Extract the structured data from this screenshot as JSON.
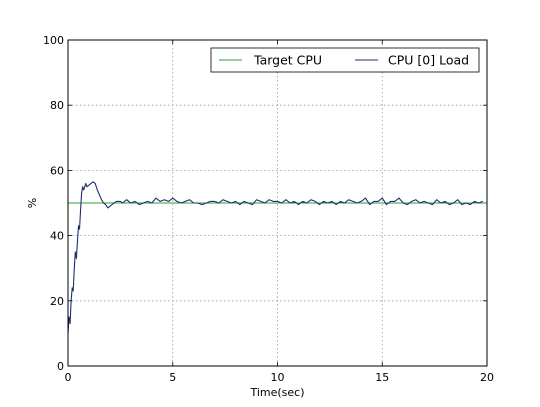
{
  "chart_data": {
    "type": "line",
    "xlabel": "Time(sec)",
    "ylabel": "%",
    "xlim": [
      0,
      20
    ],
    "ylim": [
      0,
      100
    ],
    "xticks": [
      "0",
      "5",
      "10",
      "15",
      "20"
    ],
    "yticks": [
      "0",
      "20",
      "40",
      "60",
      "80",
      "100"
    ],
    "grid": true,
    "legend_position": "top-right",
    "series": [
      {
        "name": "Target CPU",
        "color": "#2ca02c",
        "x": [
          0,
          20
        ],
        "y": [
          50,
          50
        ]
      },
      {
        "name": "CPU [0] Load",
        "color": "#1f2f6e",
        "x": [
          0.0,
          0.05,
          0.1,
          0.15,
          0.2,
          0.25,
          0.3,
          0.35,
          0.4,
          0.45,
          0.5,
          0.55,
          0.6,
          0.65,
          0.7,
          0.75,
          0.8,
          0.85,
          0.9,
          1.0,
          1.1,
          1.2,
          1.3,
          1.4,
          1.5,
          1.6,
          1.7,
          1.8,
          1.9,
          2.0,
          2.1,
          2.2,
          2.3,
          2.4,
          2.5,
          2.6,
          2.7,
          2.8,
          2.9,
          3.0,
          3.2,
          3.4,
          3.6,
          3.8,
          4.0,
          4.2,
          4.4,
          4.6,
          4.8,
          5.0,
          5.2,
          5.4,
          5.6,
          5.8,
          6.0,
          6.2,
          6.4,
          6.6,
          6.8,
          7.0,
          7.2,
          7.4,
          7.6,
          7.8,
          8.0,
          8.2,
          8.4,
          8.6,
          8.8,
          9.0,
          9.2,
          9.4,
          9.6,
          9.8,
          10.0,
          10.2,
          10.4,
          10.6,
          10.8,
          11.0,
          11.2,
          11.4,
          11.6,
          11.8,
          12.0,
          12.2,
          12.4,
          12.6,
          12.8,
          13.0,
          13.2,
          13.4,
          13.6,
          13.8,
          14.0,
          14.2,
          14.4,
          14.6,
          14.8,
          15.0,
          15.2,
          15.4,
          15.6,
          15.8,
          16.0,
          16.2,
          16.4,
          16.6,
          16.8,
          17.0,
          17.2,
          17.4,
          17.6,
          17.8,
          18.0,
          18.2,
          18.4,
          18.6,
          18.8,
          19.0,
          19.2,
          19.4,
          19.6,
          19.8
        ],
        "y": [
          10,
          15,
          13,
          20,
          24,
          23,
          30,
          35,
          33,
          38,
          43,
          42,
          48,
          53,
          55,
          54,
          55,
          56,
          55,
          55.5,
          56,
          56.5,
          56,
          54,
          52.5,
          51,
          50,
          49.5,
          48.5,
          49,
          49.5,
          50,
          50.5,
          50.5,
          50.5,
          50,
          50.5,
          51,
          50.5,
          50,
          50.5,
          49.5,
          50,
          50.5,
          50,
          51.5,
          50.5,
          51,
          50.5,
          51.5,
          50.5,
          50,
          50.5,
          51,
          50,
          50,
          49.5,
          50,
          50.5,
          50.5,
          50,
          51,
          50.5,
          50,
          50.5,
          49.5,
          50.5,
          50,
          49.5,
          51,
          50.5,
          50,
          51,
          50.5,
          50.5,
          50,
          51,
          50,
          50.5,
          49.5,
          50.5,
          50,
          51,
          50.5,
          49.5,
          50.5,
          50,
          50.5,
          49.5,
          50.5,
          50,
          51,
          50.5,
          50,
          50.5,
          51.5,
          49.5,
          50.5,
          50.5,
          51.5,
          49.5,
          50.5,
          50.5,
          51.5,
          50,
          49.5,
          50.5,
          51,
          50,
          50.5,
          50,
          49.5,
          51,
          50,
          50.5,
          49.5,
          50,
          51,
          49.5,
          50,
          49.5,
          50.5,
          50,
          50.5
        ]
      }
    ]
  }
}
